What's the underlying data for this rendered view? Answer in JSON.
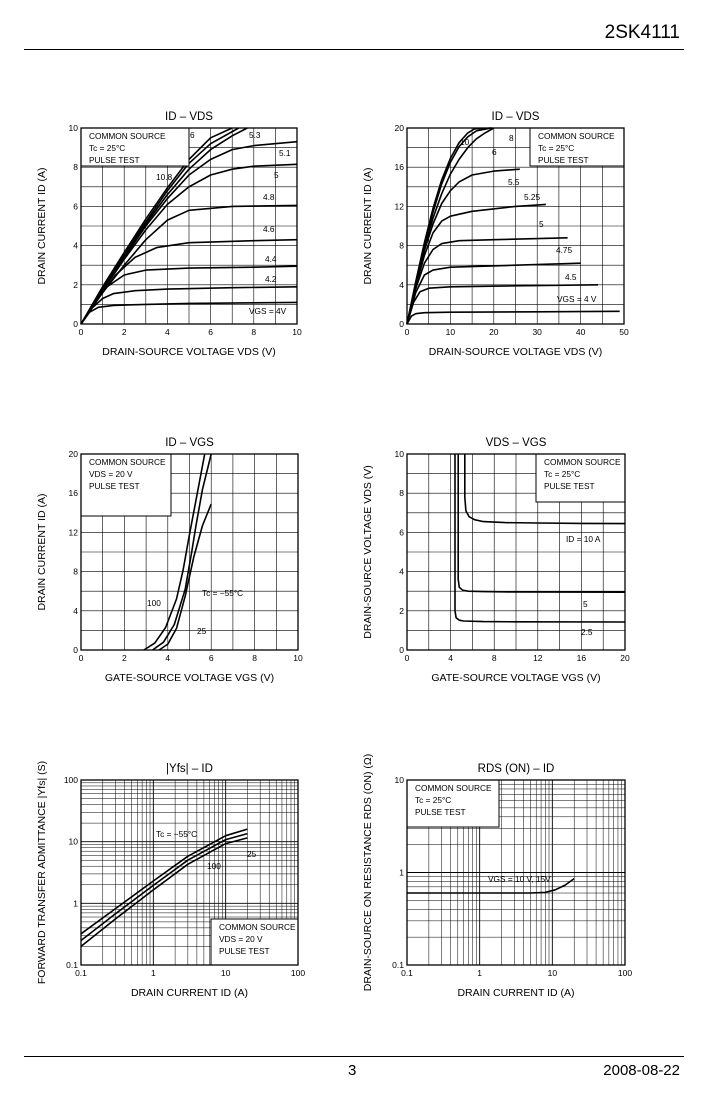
{
  "header": {
    "part_number": "2SK4111"
  },
  "footer": {
    "page": "3",
    "date": "2008-08-22"
  },
  "chart_data": [
    {
      "id": "c1",
      "type": "line",
      "title": "ID – VDS",
      "xlabel": "DRAIN-SOURCE VOLTAGE  VDS  (V)",
      "ylabel": "DRAIN CURRENT  ID  (A)",
      "xlim": [
        0,
        10
      ],
      "ylim": [
        0,
        10
      ],
      "xticks": [
        0,
        2,
        4,
        6,
        8,
        10
      ],
      "yticks": [
        0,
        2,
        4,
        6,
        8,
        10
      ],
      "grid": true,
      "notes": [
        "COMMON SOURCE",
        "Tc = 25°C",
        "PULSE TEST"
      ],
      "series": [
        {
          "name": "VGS = 4V",
          "x": [
            0,
            0.4,
            0.8,
            1.5,
            3,
            5,
            8,
            10
          ],
          "y": [
            0,
            0.6,
            0.85,
            0.95,
            1.0,
            1.05,
            1.08,
            1.1
          ]
        },
        {
          "name": "4.2",
          "x": [
            0,
            0.5,
            1,
            1.5,
            2.5,
            4,
            7,
            10
          ],
          "y": [
            0,
            0.8,
            1.3,
            1.55,
            1.7,
            1.78,
            1.85,
            1.9
          ]
        },
        {
          "name": "4.4",
          "x": [
            0,
            0.6,
            1.2,
            2,
            3,
            5,
            8,
            10
          ],
          "y": [
            0,
            1.0,
            1.9,
            2.5,
            2.75,
            2.85,
            2.9,
            2.95
          ]
        },
        {
          "name": "4.6",
          "x": [
            0,
            0.8,
            1.6,
            2.5,
            3.5,
            5,
            8,
            10
          ],
          "y": [
            0,
            1.3,
            2.5,
            3.4,
            3.9,
            4.15,
            4.25,
            4.3
          ]
        },
        {
          "name": "4.8",
          "x": [
            0,
            1,
            2,
            3,
            4,
            5,
            7,
            10
          ],
          "y": [
            0,
            1.6,
            3.0,
            4.3,
            5.3,
            5.8,
            6.0,
            6.05
          ]
        },
        {
          "name": "5",
          "x": [
            0,
            1,
            2,
            3,
            4,
            5,
            6,
            7,
            8,
            10
          ],
          "y": [
            0,
            1.7,
            3.3,
            4.8,
            6.1,
            7.0,
            7.6,
            7.9,
            8.05,
            8.15
          ]
        },
        {
          "name": "5.1",
          "x": [
            0,
            1,
            2,
            3,
            4,
            5,
            6,
            7,
            8,
            10
          ],
          "y": [
            0,
            1.75,
            3.4,
            5.0,
            6.4,
            7.6,
            8.4,
            8.9,
            9.1,
            9.3
          ]
        },
        {
          "name": "5.3",
          "x": [
            0,
            1,
            2,
            3,
            4,
            5,
            6,
            7,
            7.7
          ],
          "y": [
            0,
            1.8,
            3.5,
            5.1,
            6.6,
            7.9,
            8.9,
            9.6,
            10
          ]
        },
        {
          "name": "6",
          "x": [
            0,
            1,
            2,
            3,
            4,
            5,
            6,
            7.3
          ],
          "y": [
            0,
            1.85,
            3.6,
            5.2,
            6.8,
            8.2,
            9.2,
            10
          ]
        },
        {
          "name": "10, 8",
          "x": [
            0,
            1,
            2,
            3,
            4,
            5,
            6,
            7
          ],
          "y": [
            0,
            1.9,
            3.65,
            5.35,
            6.95,
            8.4,
            9.5,
            10
          ]
        }
      ]
    },
    {
      "id": "c2",
      "type": "line",
      "title": "ID – VDS",
      "xlabel": "DRAIN-SOURCE VOLTAGE  VDS  (V)",
      "ylabel": "DRAIN CURRENT  ID  (A)",
      "xlim": [
        0,
        50
      ],
      "ylim": [
        0,
        20
      ],
      "xticks": [
        0,
        10,
        20,
        30,
        40,
        50
      ],
      "yticks": [
        0,
        4,
        8,
        12,
        16,
        20
      ],
      "grid": true,
      "notes": [
        "COMMON SOURCE",
        "Tc = 25°C",
        "PULSE TEST"
      ],
      "series": [
        {
          "name": "VGS = 4 V",
          "x": [
            0,
            1,
            2,
            4,
            10,
            30,
            49
          ],
          "y": [
            0,
            0.8,
            1.05,
            1.15,
            1.2,
            1.25,
            1.3
          ]
        },
        {
          "name": "4.5",
          "x": [
            0,
            1.5,
            3,
            5,
            10,
            25,
            44
          ],
          "y": [
            0,
            2.2,
            3.3,
            3.65,
            3.8,
            3.9,
            4.0
          ]
        },
        {
          "name": "4.75",
          "x": [
            0,
            2,
            4,
            6,
            10,
            25,
            40
          ],
          "y": [
            0,
            3.2,
            5.0,
            5.5,
            5.8,
            6.0,
            6.2
          ]
        },
        {
          "name": "5",
          "x": [
            0,
            2,
            4,
            6,
            8,
            12,
            20,
            37
          ],
          "y": [
            0,
            3.6,
            6.2,
            7.6,
            8.2,
            8.5,
            8.6,
            8.8
          ]
        },
        {
          "name": "5.25",
          "x": [
            0,
            2,
            4,
            6,
            8,
            10,
            15,
            25,
            32
          ],
          "y": [
            0,
            3.8,
            7.0,
            9.3,
            10.5,
            11.0,
            11.5,
            12.0,
            12.2
          ]
        },
        {
          "name": "5.5",
          "x": [
            0,
            2,
            4,
            6,
            8,
            10,
            12,
            15,
            20,
            26
          ],
          "y": [
            0,
            4.0,
            7.5,
            10.2,
            12.3,
            13.6,
            14.5,
            15.2,
            15.6,
            15.8
          ]
        },
        {
          "name": "6",
          "x": [
            0,
            2,
            4,
            6,
            8,
            10,
            12,
            14,
            16,
            18,
            20
          ],
          "y": [
            0,
            4.1,
            7.8,
            10.8,
            13.3,
            15.3,
            16.8,
            18.0,
            18.9,
            19.5,
            20
          ]
        },
        {
          "name": "8",
          "x": [
            0,
            2,
            4,
            6,
            8,
            10,
            12,
            14,
            16,
            19.5
          ],
          "y": [
            0,
            4.2,
            8.1,
            11.4,
            14.3,
            16.5,
            18.1,
            19.1,
            19.7,
            20
          ]
        },
        {
          "name": "10",
          "x": [
            0,
            2,
            4,
            6,
            8,
            10,
            12,
            14,
            15.5,
            19.5
          ],
          "y": [
            0,
            4.3,
            8.3,
            11.8,
            14.7,
            16.9,
            18.5,
            19.5,
            19.9,
            20
          ]
        }
      ]
    },
    {
      "id": "c3",
      "type": "line",
      "title": "ID – VGS",
      "xlabel": "GATE-SOURCE VOLTAGE  VGS  (V)",
      "ylabel": "DRAIN CURRENT  ID  (A)",
      "xlim": [
        0,
        10
      ],
      "ylim": [
        0,
        20
      ],
      "xticks": [
        0,
        2,
        4,
        6,
        8,
        10
      ],
      "yticks": [
        0,
        4,
        8,
        12,
        16,
        20
      ],
      "grid": true,
      "notes": [
        "COMMON SOURCE",
        "VDS = 20 V",
        "PULSE TEST"
      ],
      "series": [
        {
          "name": "Tc = −55°C",
          "x": [
            3.6,
            4.0,
            4.4,
            4.8,
            5.2,
            5.6,
            6.0
          ],
          "y": [
            0,
            0.6,
            2.2,
            5.5,
            9.5,
            12.7,
            14.9
          ]
        },
        {
          "name": "25",
          "x": [
            3.3,
            3.8,
            4.3,
            4.8,
            5.1,
            5.3,
            5.6,
            6.0
          ],
          "y": [
            0,
            0.8,
            2.6,
            6.2,
            10.0,
            12.7,
            16.4,
            20
          ]
        },
        {
          "name": "100",
          "x": [
            2.9,
            3.4,
            3.9,
            4.4,
            4.7,
            5.0,
            5.3,
            5.7
          ],
          "y": [
            0,
            0.7,
            2.3,
            5.2,
            8.1,
            11.8,
            15.3,
            20
          ]
        }
      ]
    },
    {
      "id": "c4",
      "type": "line",
      "title": "VDS – VGS",
      "xlabel": "GATE-SOURCE VOLTAGE  VGS  (V)",
      "ylabel": "DRAIN-SOURCE VOLTAGE  VDS  (V)",
      "xlim": [
        0,
        20
      ],
      "ylim": [
        0,
        10
      ],
      "xticks": [
        0,
        4,
        8,
        12,
        16,
        20
      ],
      "yticks": [
        0,
        2,
        4,
        6,
        8,
        10
      ],
      "grid": true,
      "notes": [
        "COMMON SOURCE",
        "Tc = 25°C",
        "PULSE TEST"
      ],
      "series": [
        {
          "name": "ID = 10 A",
          "x": [
            5.3,
            5.3,
            5.4,
            5.7,
            6.2,
            7,
            9,
            12,
            16,
            20
          ],
          "y": [
            10,
            7.8,
            7.1,
            6.8,
            6.65,
            6.55,
            6.5,
            6.48,
            6.46,
            6.45
          ]
        },
        {
          "name": "5",
          "x": [
            4.7,
            4.7,
            4.8,
            5.1,
            5.6,
            7,
            10,
            20
          ],
          "y": [
            10,
            3.6,
            3.2,
            3.05,
            3.0,
            2.98,
            2.96,
            2.95
          ]
        },
        {
          "name": "2.5",
          "x": [
            4.4,
            4.4,
            4.5,
            4.8,
            5.2,
            7,
            10,
            20
          ],
          "y": [
            10,
            2.0,
            1.65,
            1.52,
            1.48,
            1.45,
            1.44,
            1.43
          ]
        }
      ]
    },
    {
      "id": "c5",
      "type": "line",
      "title": "|Yfs| – ID",
      "xlabel": "DRAIN CURRENT  ID  (A)",
      "ylabel": "FORWARD TRANSFER ADMITTANCE  |Yfs|  (S)",
      "xscale": "log",
      "yscale": "log",
      "xlim": [
        0.1,
        100
      ],
      "ylim": [
        0.1,
        100
      ],
      "xticks": [
        0.1,
        1,
        10,
        100
      ],
      "yticks": [
        0.1,
        1,
        10,
        100
      ],
      "grid": true,
      "notes": [
        "COMMON SOURCE",
        "VDS = 20 V",
        "PULSE TEST"
      ],
      "series": [
        {
          "name": "Tc = −55°C",
          "x": [
            0.1,
            0.3,
            1,
            3,
            10,
            20
          ],
          "y": [
            0.32,
            0.82,
            2.3,
            5.8,
            12.5,
            16
          ]
        },
        {
          "name": "25",
          "x": [
            0.1,
            0.3,
            1,
            3,
            10,
            20
          ],
          "y": [
            0.25,
            0.68,
            1.95,
            5.0,
            10.8,
            13.5
          ]
        },
        {
          "name": "100",
          "x": [
            0.1,
            0.3,
            1,
            3,
            10,
            20
          ],
          "y": [
            0.2,
            0.56,
            1.65,
            4.3,
            9.3,
            11.5
          ]
        }
      ]
    },
    {
      "id": "c6",
      "type": "line",
      "title": "RDS (ON) – ID",
      "xlabel": "DRAIN CURRENT  ID  (A)",
      "ylabel": "DRAIN-SOURCE ON RESISTANCE  RDS (ON)  (Ω)",
      "xscale": "log",
      "yscale": "log",
      "xlim": [
        0.1,
        100
      ],
      "ylim": [
        0.1,
        10
      ],
      "xticks": [
        0.1,
        1,
        10,
        100
      ],
      "yticks": [
        0.1,
        1,
        10
      ],
      "grid": true,
      "notes": [
        "COMMON SOURCE",
        "Tc = 25°C",
        "PULSE TEST"
      ],
      "series": [
        {
          "name": "VGS = 10 V, 15V",
          "x": [
            0.1,
            1,
            5,
            8,
            11,
            15,
            20
          ],
          "y": [
            0.6,
            0.6,
            0.6,
            0.61,
            0.65,
            0.73,
            0.86
          ]
        }
      ]
    }
  ]
}
